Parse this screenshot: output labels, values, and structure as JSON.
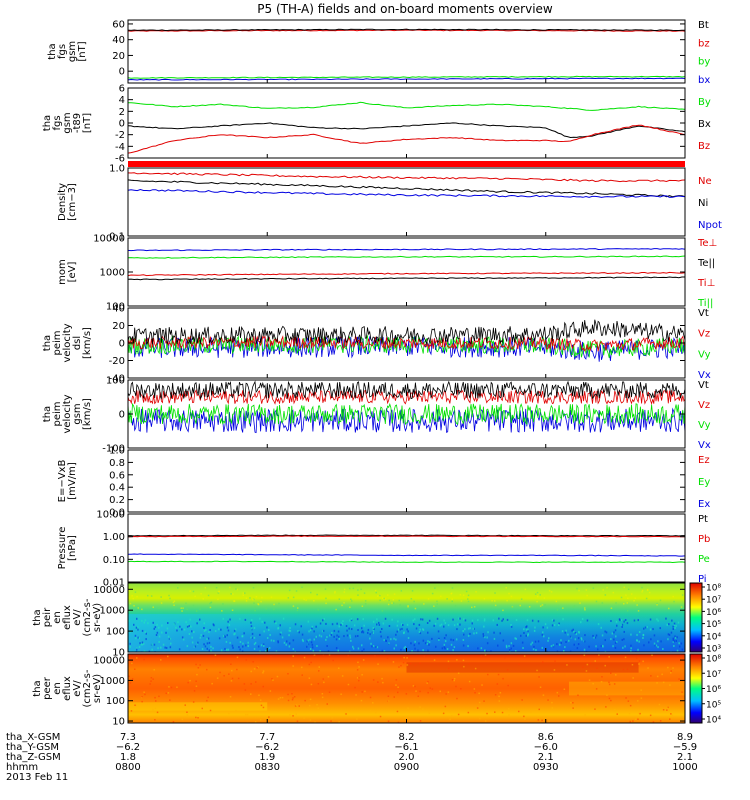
{
  "title": "P5 (TH-A) fields and on-board moments overview",
  "date_label": "2013 Feb 11",
  "colors": {
    "black": "#000000",
    "red": "#e00000",
    "green": "#00e000",
    "blue": "#0000e0",
    "bar_red": "#ff0000"
  },
  "chart_data": [
    {
      "type": "line",
      "ylabel_lines": [
        "tha",
        "fgs",
        "gsm",
        "[nT]"
      ],
      "ylim": [
        -15,
        65
      ],
      "yticks": [
        0,
        20,
        40,
        60
      ],
      "ytick_labels": [
        "0",
        "20",
        "40",
        "60"
      ],
      "legend": [
        {
          "label": "Bt",
          "color": "black"
        },
        {
          "label": "bz",
          "color": "red"
        },
        {
          "label": "by",
          "color": "green"
        },
        {
          "label": "bx",
          "color": "blue"
        }
      ],
      "series": [
        {
          "color": "red",
          "x": [
            0,
            30,
            60,
            90,
            120
          ],
          "y": [
            51,
            51.5,
            52,
            51.5,
            51
          ]
        },
        {
          "color": "black",
          "x": [
            0,
            30,
            60,
            90,
            120
          ],
          "y": [
            52,
            52.5,
            53,
            52.5,
            52
          ]
        },
        {
          "color": "green",
          "x": [
            0,
            30,
            60,
            90,
            120
          ],
          "y": [
            -8.5,
            -8,
            -7.5,
            -7,
            -7
          ]
        },
        {
          "color": "blue",
          "x": [
            0,
            30,
            60,
            90,
            120
          ],
          "y": [
            -11,
            -10.5,
            -10,
            -9.5,
            -9
          ]
        }
      ]
    },
    {
      "type": "line",
      "ylabel_lines": [
        "tha",
        "fgs",
        "gsm",
        "-t89",
        "[nT]"
      ],
      "ylim": [
        -6,
        6
      ],
      "yticks": [
        -6,
        -4,
        -2,
        0,
        2,
        4,
        6
      ],
      "ytick_labels": [
        "-6",
        "-4",
        "-2",
        "0",
        "2",
        "4",
        "6"
      ],
      "legend": [
        {
          "label": "By",
          "color": "green"
        },
        {
          "label": "Bx",
          "color": "black"
        },
        {
          "label": "Bz",
          "color": "red"
        }
      ],
      "series": [
        {
          "color": "green",
          "x": [
            0,
            10,
            20,
            30,
            40,
            50,
            60,
            70,
            80,
            90,
            100,
            110,
            120
          ],
          "y": [
            3.5,
            2.8,
            3.2,
            2.5,
            2.7,
            3.5,
            2.6,
            3,
            3.2,
            2.8,
            2.2,
            2.8,
            2.3
          ]
        },
        {
          "color": "black",
          "x": [
            0,
            10,
            20,
            30,
            40,
            50,
            60,
            70,
            80,
            90,
            95,
            100,
            110,
            120
          ],
          "y": [
            -0.5,
            -1,
            -0.5,
            0,
            -0.8,
            -1,
            -0.5,
            0,
            -0.5,
            -0.8,
            -2.5,
            -2.2,
            -0.5,
            -1.5
          ]
        },
        {
          "color": "red",
          "x": [
            0,
            10,
            20,
            30,
            40,
            50,
            60,
            70,
            80,
            90,
            95,
            100,
            110,
            120
          ],
          "y": [
            -5.2,
            -3,
            -2,
            -2.5,
            -2,
            -3.5,
            -2.8,
            -2.5,
            -3,
            -3,
            -3.2,
            -2,
            -0.3,
            -2
          ]
        }
      ]
    },
    {
      "type": "line",
      "ylabel_lines": [
        "Density",
        "[cm−3]"
      ],
      "yscale": "log",
      "ylim": [
        0.1,
        1.0
      ],
      "yticks": [
        0.1,
        1.0
      ],
      "ytick_labels": [
        "0.1",
        "1.0"
      ],
      "legend": [
        {
          "label": "Ne",
          "color": "red"
        },
        {
          "label": "Ni",
          "color": "black"
        },
        {
          "label": "Npot",
          "color": "blue"
        }
      ],
      "series": [
        {
          "color": "red",
          "x": [
            0,
            20,
            40,
            60,
            80,
            100,
            120
          ],
          "y": [
            0.85,
            0.8,
            0.75,
            0.72,
            0.7,
            0.65,
            0.65
          ]
        },
        {
          "color": "black",
          "x": [
            0,
            20,
            40,
            60,
            80,
            100,
            120
          ],
          "y": [
            0.65,
            0.6,
            0.55,
            0.5,
            0.45,
            0.42,
            0.38
          ]
        },
        {
          "color": "blue",
          "x": [
            0,
            20,
            40,
            60,
            80,
            100,
            120
          ],
          "y": [
            0.48,
            0.45,
            0.42,
            0.4,
            0.39,
            0.38,
            0.38
          ]
        }
      ]
    },
    {
      "type": "line",
      "ylabel_lines": [
        "mom",
        "[eV]"
      ],
      "yscale": "log",
      "ylim": [
        100,
        10000
      ],
      "yticks": [
        100,
        1000,
        10000
      ],
      "ytick_labels": [
        "100",
        "1000",
        "10000"
      ],
      "legend": [
        {
          "label": "Te⊥",
          "color": "red"
        },
        {
          "label": "Te||",
          "color": "black"
        },
        {
          "label": "Ti⊥",
          "color": "red"
        },
        {
          "label": "Ti||",
          "color": "green"
        }
      ],
      "series": [
        {
          "color": "blue",
          "x": [
            0,
            30,
            60,
            90,
            120
          ],
          "y": [
            4300,
            4500,
            4600,
            4700,
            4800
          ]
        },
        {
          "color": "green",
          "x": [
            0,
            30,
            60,
            90,
            120
          ],
          "y": [
            2600,
            2700,
            2800,
            2800,
            2900
          ]
        },
        {
          "color": "red",
          "x": [
            0,
            30,
            60,
            90,
            120
          ],
          "y": [
            800,
            850,
            900,
            920,
            950
          ]
        },
        {
          "color": "black",
          "x": [
            0,
            30,
            60,
            90,
            120
          ],
          "y": [
            600,
            630,
            650,
            670,
            700
          ]
        }
      ]
    },
    {
      "type": "line",
      "ylabel_lines": [
        "tha",
        "peim",
        "velocity",
        "dsl",
        "[km/s]"
      ],
      "ylim": [
        -40,
        40
      ],
      "yticks": [
        -40,
        -20,
        0,
        20,
        40
      ],
      "ytick_labels": [
        "-40",
        "-20",
        "0",
        "20",
        "40"
      ],
      "legend": [
        {
          "label": "Vt",
          "color": "black"
        },
        {
          "label": "Vz",
          "color": "red"
        },
        {
          "label": "Vy",
          "color": "green"
        },
        {
          "label": "Vx",
          "color": "blue"
        }
      ],
      "series": [
        {
          "color": "blue",
          "noise": 12,
          "x": [
            0,
            30,
            60,
            90,
            100,
            120
          ],
          "y": [
            -6,
            -5,
            -4,
            -5,
            -10,
            -5
          ]
        },
        {
          "color": "green",
          "noise": 10,
          "x": [
            0,
            30,
            60,
            90,
            100,
            120
          ],
          "y": [
            -3,
            -2,
            -2,
            -3,
            -8,
            -3
          ]
        },
        {
          "color": "red",
          "noise": 7,
          "x": [
            0,
            30,
            60,
            90,
            100,
            120
          ],
          "y": [
            0,
            1,
            0,
            0,
            -3,
            1
          ]
        },
        {
          "color": "black",
          "noise": 10,
          "x": [
            0,
            30,
            60,
            90,
            100,
            120
          ],
          "y": [
            8,
            9,
            9,
            10,
            18,
            10
          ]
        }
      ]
    },
    {
      "type": "line",
      "ylabel_lines": [
        "tha",
        "peim",
        "velocity",
        "gsm",
        "[km/s]"
      ],
      "ylim": [
        -100,
        100
      ],
      "yticks": [
        -100,
        0,
        100
      ],
      "ytick_labels": [
        "-100",
        "0",
        "100"
      ],
      "legend": [
        {
          "label": "Vt",
          "color": "black"
        },
        {
          "label": "Vz",
          "color": "red"
        },
        {
          "label": "Vy",
          "color": "green"
        },
        {
          "label": "Vx",
          "color": "blue"
        }
      ],
      "series": [
        {
          "color": "blue",
          "noise": 35,
          "x": [
            0,
            60,
            120
          ],
          "y": [
            -20,
            -20,
            -20
          ]
        },
        {
          "color": "green",
          "noise": 30,
          "x": [
            0,
            60,
            120
          ],
          "y": [
            0,
            0,
            0
          ]
        },
        {
          "color": "red",
          "noise": 20,
          "x": [
            0,
            60,
            120
          ],
          "y": [
            50,
            50,
            50
          ]
        },
        {
          "color": "black",
          "noise": 25,
          "x": [
            0,
            60,
            120
          ],
          "y": [
            70,
            70,
            70
          ]
        }
      ]
    },
    {
      "type": "line",
      "ylabel_lines": [
        "E=−VxB",
        "[mV/m]"
      ],
      "ylim": [
        0,
        1.0
      ],
      "yticks": [
        0,
        0.2,
        0.4,
        0.6,
        0.8,
        1.0
      ],
      "ytick_labels": [
        "0.0",
        "0.2",
        "0.4",
        "0.6",
        "0.8",
        "1.0"
      ],
      "legend": [
        {
          "label": "Ez",
          "color": "red"
        },
        {
          "label": "Ey",
          "color": "green"
        },
        {
          "label": "Ex",
          "color": "blue"
        }
      ],
      "series": []
    },
    {
      "type": "line",
      "ylabel_lines": [
        "Pressure",
        "[nPa]"
      ],
      "yscale": "log",
      "ylim": [
        0.01,
        10
      ],
      "yticks": [
        0.01,
        0.1,
        1,
        10
      ],
      "ytick_labels": [
        "0.01",
        "0.10",
        "1.00",
        "10.00"
      ],
      "legend": [
        {
          "label": "Pt",
          "color": "black"
        },
        {
          "label": "Pb",
          "color": "red"
        },
        {
          "label": "Pe",
          "color": "green"
        },
        {
          "label": "Pi",
          "color": "blue"
        }
      ],
      "series": [
        {
          "color": "black",
          "x": [
            0,
            30,
            60,
            90,
            120
          ],
          "y": [
            1.1,
            1.15,
            1.15,
            1.1,
            1.1
          ]
        },
        {
          "color": "red",
          "x": [
            0,
            30,
            60,
            90,
            120
          ],
          "y": [
            1.0,
            1.05,
            1.05,
            1.02,
            1.0
          ]
        },
        {
          "color": "blue",
          "x": [
            0,
            30,
            60,
            90,
            120
          ],
          "y": [
            0.17,
            0.16,
            0.15,
            0.15,
            0.14
          ]
        },
        {
          "color": "green",
          "x": [
            0,
            30,
            60,
            90,
            120
          ],
          "y": [
            0.08,
            0.08,
            0.075,
            0.075,
            0.075
          ]
        }
      ]
    },
    {
      "type": "heatmap",
      "ylabel_lines": [
        "tha",
        "peir",
        "en",
        "eflux",
        "eV/",
        "(cm2-s-",
        "sr-eV)"
      ],
      "yscale": "log",
      "ylim": [
        10,
        20000
      ],
      "yticks": [
        10,
        100,
        1000,
        10000
      ],
      "ytick_labels": [
        "10",
        "100",
        "1000",
        "10000"
      ],
      "colorbar_ticks": [
        "10³",
        "10⁴",
        "10⁵",
        "10⁶",
        "10⁷",
        "10⁸"
      ]
    },
    {
      "type": "heatmap",
      "ylabel_lines": [
        "tha",
        "peer",
        "en",
        "eflux",
        "eV/",
        "(cm2-s-",
        "sr-eV)"
      ],
      "yscale": "log",
      "ylim": [
        8,
        20000
      ],
      "yticks": [
        10,
        100,
        1000,
        10000
      ],
      "ytick_labels": [
        "10",
        "100",
        "1000",
        "10000"
      ],
      "colorbar_ticks": [
        "10⁴",
        "10⁵",
        "10⁶",
        "10⁷",
        "10⁸"
      ]
    }
  ],
  "xaxis": {
    "xlim": [
      0,
      120
    ],
    "tick_x": [
      0,
      30,
      60,
      90,
      120
    ],
    "rows": [
      {
        "label": "tha_X-GSM",
        "values": [
          "7.3",
          "7.7",
          "8.2",
          "8.6",
          "8.9"
        ]
      },
      {
        "label": "tha_Y-GSM",
        "values": [
          "−6.2",
          "−6.2",
          "−6.1",
          "−6.0",
          "−5.9"
        ]
      },
      {
        "label": "tha_Z-GSM",
        "values": [
          "1.8",
          "1.9",
          "2.0",
          "2.1",
          "2.1"
        ]
      },
      {
        "label": "hhmm",
        "values": [
          "0800",
          "0830",
          "0900",
          "0930",
          "1000"
        ]
      }
    ]
  }
}
